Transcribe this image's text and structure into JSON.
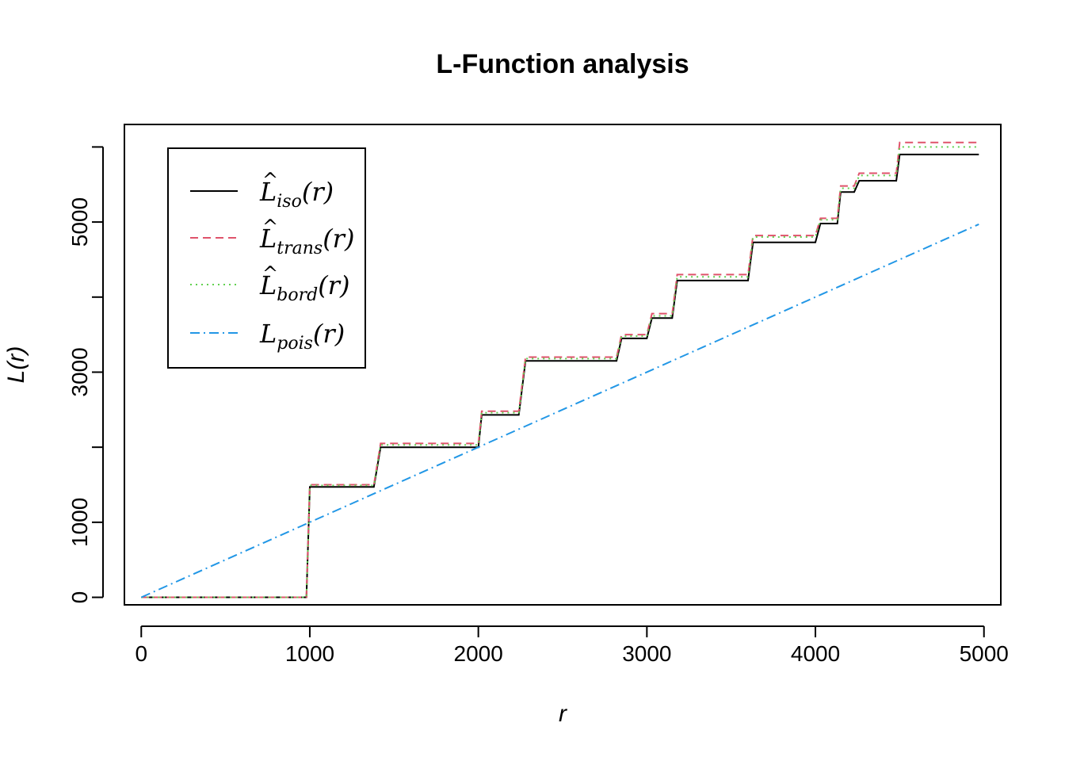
{
  "chart_data": {
    "type": "line",
    "title": "L-Function analysis",
    "xlabel": "r",
    "ylabel": "L(r)",
    "xlim": [
      -100,
      5100
    ],
    "ylim": [
      -100,
      6300
    ],
    "xticks": [
      0,
      1000,
      2000,
      3000,
      4000,
      5000
    ],
    "yticks": [
      0,
      1000,
      3000,
      5000
    ],
    "ytick_minor": [
      2000,
      4000,
      6000
    ],
    "legend_position": "top-left",
    "series": [
      {
        "name": "iso",
        "symbol": "L",
        "subscript": "iso",
        "hat": true,
        "color": "#000000",
        "dash": "",
        "step": true,
        "x": [
          0,
          980,
          1000,
          1380,
          1420,
          2000,
          2020,
          2240,
          2280,
          2820,
          2850,
          3000,
          3030,
          3150,
          3180,
          3600,
          3630,
          4000,
          4030,
          4130,
          4150,
          4230,
          4260,
          4480,
          4500,
          4970
        ],
        "y": [
          0,
          0,
          1470,
          1470,
          2000,
          2000,
          2430,
          2430,
          3150,
          3150,
          3450,
          3450,
          3720,
          3720,
          4220,
          4220,
          4730,
          4730,
          4980,
          4980,
          5400,
          5400,
          5550,
          5550,
          5900,
          5900
        ]
      },
      {
        "name": "trans",
        "symbol": "L",
        "subscript": "trans",
        "hat": true,
        "color": "#DF536B",
        "dash": "10,6",
        "step": true,
        "x": [
          0,
          980,
          1000,
          1380,
          1420,
          2000,
          2020,
          2240,
          2280,
          2820,
          2850,
          3000,
          3030,
          3150,
          3180,
          3600,
          3630,
          4000,
          4030,
          4130,
          4150,
          4230,
          4260,
          4480,
          4500,
          4970
        ],
        "y": [
          0,
          0,
          1500,
          1500,
          2050,
          2050,
          2480,
          2480,
          3200,
          3200,
          3500,
          3500,
          3780,
          3780,
          4300,
          4300,
          4820,
          4820,
          5050,
          5050,
          5480,
          5480,
          5650,
          5650,
          6060,
          6060
        ]
      },
      {
        "name": "bord",
        "symbol": "L",
        "subscript": "bord",
        "hat": true,
        "color": "#61D04F",
        "dash": "2,5",
        "step": true,
        "x": [
          0,
          980,
          1000,
          1380,
          1420,
          2000,
          2020,
          2240,
          2280,
          2820,
          2850,
          3000,
          3030,
          3150,
          3180,
          3600,
          3630,
          4000,
          4030,
          4130,
          4150,
          4230,
          4260,
          4480,
          4500,
          4970
        ],
        "y": [
          0,
          0,
          1490,
          1490,
          2030,
          2030,
          2460,
          2460,
          3180,
          3180,
          3480,
          3480,
          3750,
          3750,
          4270,
          4270,
          4800,
          4800,
          5030,
          5030,
          5450,
          5450,
          5620,
          5620,
          6000,
          6000
        ]
      },
      {
        "name": "pois",
        "symbol": "L",
        "subscript": "pois",
        "hat": false,
        "color": "#2297E6",
        "dash": "12,5,2,5",
        "step": false,
        "x": [
          0,
          4970
        ],
        "y": [
          0,
          4970
        ]
      }
    ]
  }
}
